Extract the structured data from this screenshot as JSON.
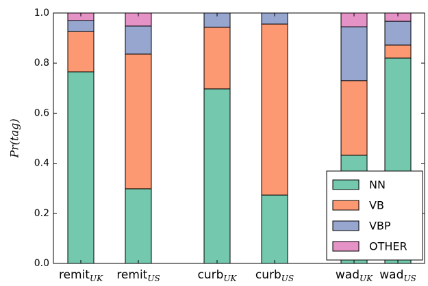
{
  "chart_data": {
    "type": "stacked_bar",
    "y_label": "Pr(tag)",
    "categories": [
      "remit",
      "remit",
      "curb",
      "curb",
      "wad",
      "wad"
    ],
    "category_subscripts": [
      "UK",
      "US",
      "UK",
      "US",
      "UK",
      "US"
    ],
    "series": [
      {
        "name": "NN",
        "color": "#74c8ad",
        "values": [
          0.765,
          0.298,
          0.697,
          0.273,
          0.432,
          0.82
        ]
      },
      {
        "name": "VB",
        "color": "#fc9972",
        "values": [
          0.161,
          0.538,
          0.246,
          0.683,
          0.298,
          0.052
        ]
      },
      {
        "name": "VBP",
        "color": "#97a6cf",
        "values": [
          0.044,
          0.112,
          0.057,
          0.044,
          0.215,
          0.095
        ]
      },
      {
        "name": "OTHER",
        "color": "#e592c6",
        "values": [
          0.03,
          0.052,
          0,
          0,
          0.055,
          0.033
        ]
      }
    ],
    "ylim": [
      0,
      1
    ],
    "yticks": [
      {
        "value": 0,
        "label": "0.0"
      },
      0.2,
      0.4,
      0.6,
      0.8,
      {
        "value": 1,
        "label": "1.0"
      }
    ],
    "legend": "lower right"
  }
}
